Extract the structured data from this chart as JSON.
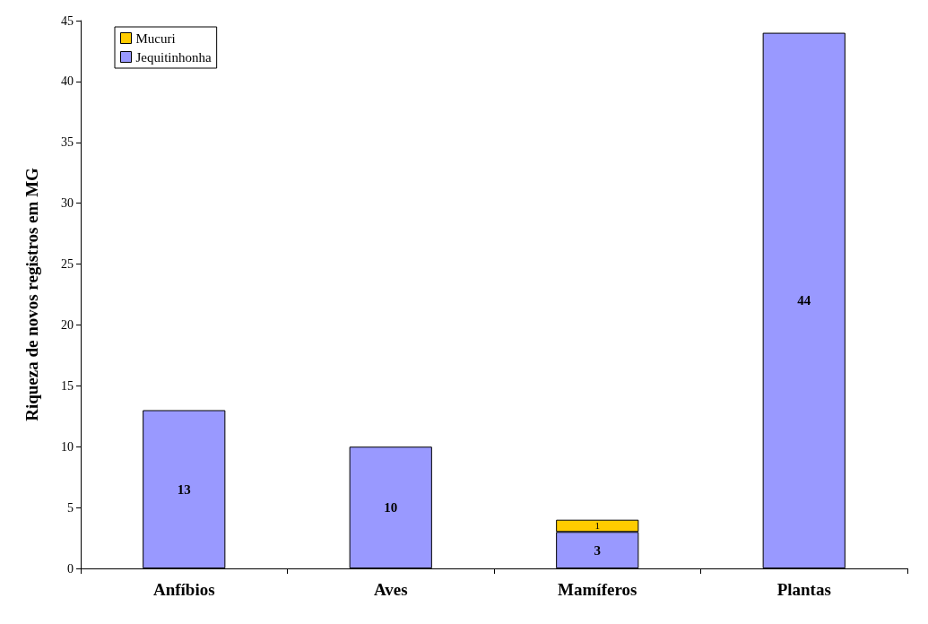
{
  "chart_data": {
    "type": "bar",
    "ylabel": "Riqueza de novos registros em MG",
    "categories": [
      "Anfíbios",
      "Aves",
      "Mamíferos",
      "Plantas"
    ],
    "stacked": true,
    "series": [
      {
        "name": "Jequitinhonha",
        "color": "#9999ff",
        "values": [
          13,
          10,
          3,
          44
        ]
      },
      {
        "name": "Mucuri",
        "color": "#ffcc00",
        "values": [
          null,
          null,
          1,
          null
        ]
      }
    ],
    "ylim": [
      0,
      45
    ],
    "yticks": [
      0,
      5,
      10,
      15,
      20,
      25,
      30,
      35,
      40,
      45
    ],
    "grid": false,
    "legend": "top left",
    "data_labels": true
  }
}
